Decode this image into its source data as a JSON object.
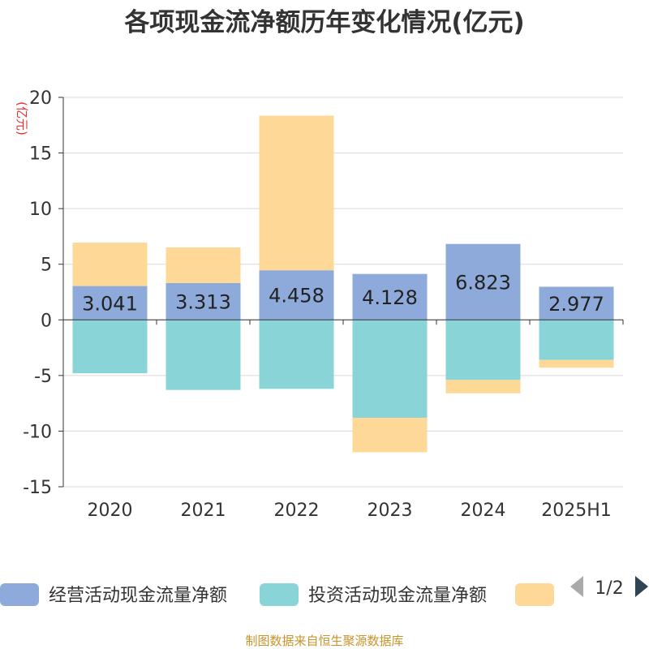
{
  "chart_data": {
    "type": "bar",
    "stacked": true,
    "title": "各项现金流净额历年变化情况(亿元)",
    "unit_label": "(亿元)",
    "categories": [
      "2020",
      "2021",
      "2022",
      "2023",
      "2024",
      "2025H1"
    ],
    "series": [
      {
        "name": "经营活动现金流量净额",
        "color": "#8eaadb",
        "values": [
          3.041,
          3.313,
          4.458,
          4.128,
          6.823,
          2.977
        ],
        "show_labels": true
      },
      {
        "name": "投资活动现金流量净额",
        "color": "#88d4d6",
        "values": [
          -4.8,
          -6.3,
          -6.2,
          -8.8,
          -5.4,
          -3.6
        ],
        "show_labels": false
      },
      {
        "name": "",
        "color": "#fed896",
        "values": [
          3.9,
          3.2,
          13.9,
          -3.1,
          -1.2,
          -0.7
        ],
        "show_labels": false
      }
    ],
    "ylim": [
      -15,
      20
    ],
    "yticks": [
      -15,
      -10,
      -5,
      0,
      5,
      10,
      15,
      20
    ],
    "grid": true,
    "legend_position": "bottom"
  },
  "legend": {
    "page_indicator": "1/2",
    "prev_icon": "triangle-left-icon",
    "next_icon": "triangle-right-icon"
  },
  "source_text": "制图数据来自恒生聚源数据库",
  "colors": {
    "title": "#333333",
    "unit": "#e8302f",
    "source": "#c8932a",
    "grid": "#d9d9d9",
    "pager_disabled": "#aaaaaa",
    "pager_active": "#2f4554"
  }
}
